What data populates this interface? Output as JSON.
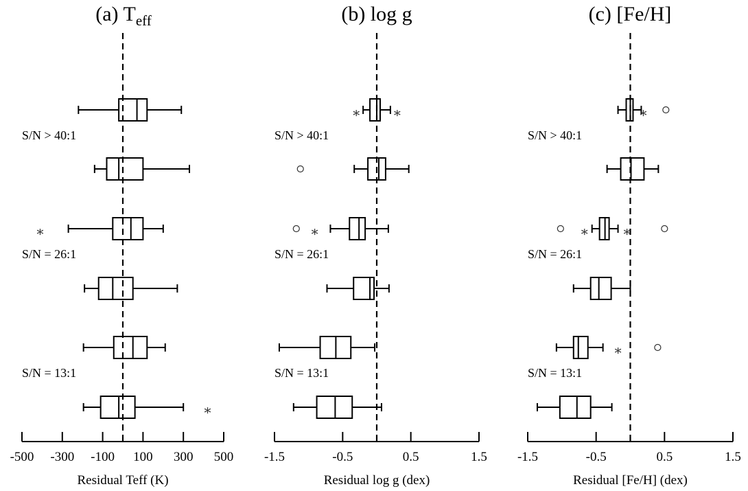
{
  "chart_data": [
    {
      "type": "boxplot",
      "title_main": "(a) T",
      "title_sub": "eff",
      "xlabel": "Residual Teff (K)",
      "xlim": [
        -500,
        500
      ],
      "xticks": [
        -500,
        -300,
        -100,
        100,
        300,
        500
      ],
      "reference_line": 0,
      "group_labels": [
        "S/N > 40:1",
        "S/N = 26:1",
        "S/N = 13:1"
      ],
      "boxes": [
        {
          "group": "S/N > 40:1",
          "whisker_low": -220,
          "q1": -20,
          "median": 70,
          "q3": 120,
          "whisker_high": 290,
          "outliers": [],
          "extremes": []
        },
        {
          "group": "S/N > 40:1",
          "whisker_low": -140,
          "q1": -80,
          "median": -20,
          "q3": 100,
          "whisker_high": 330,
          "outliers": [],
          "extremes": []
        },
        {
          "group": "S/N = 26:1",
          "whisker_low": -270,
          "q1": -50,
          "median": 40,
          "q3": 100,
          "whisker_high": 200,
          "outliers": [],
          "extremes": [
            -410
          ]
        },
        {
          "group": "S/N = 26:1",
          "whisker_low": -190,
          "q1": -120,
          "median": -50,
          "q3": 50,
          "whisker_high": 270,
          "outliers": [],
          "extremes": []
        },
        {
          "group": "S/N = 13:1",
          "whisker_low": -195,
          "q1": -45,
          "median": 50,
          "q3": 120,
          "whisker_high": 210,
          "outliers": [],
          "extremes": []
        },
        {
          "group": "S/N = 13:1",
          "whisker_low": -195,
          "q1": -110,
          "median": -20,
          "q3": 60,
          "whisker_high": 300,
          "outliers": [],
          "extremes": [
            420
          ]
        }
      ]
    },
    {
      "type": "boxplot",
      "title_main": "(b) log g",
      "title_sub": "",
      "xlabel": "Residual log g (dex)",
      "xlim": [
        -1.5,
        1.5
      ],
      "xticks": [
        "-1.5",
        "-0.5",
        "0.5",
        "1.5"
      ],
      "reference_line": 0,
      "group_labels": [
        "S/N > 40:1",
        "S/N = 26:1",
        "S/N = 13:1"
      ],
      "boxes": [
        {
          "group": "S/N > 40:1",
          "whisker_low": -0.2,
          "q1": -0.1,
          "median": 0.0,
          "q3": 0.05,
          "whisker_high": 0.2,
          "outliers": [],
          "extremes": [
            -0.3,
            0.3
          ]
        },
        {
          "group": "S/N > 40:1",
          "whisker_low": -0.33,
          "q1": -0.13,
          "median": 0.03,
          "q3": 0.13,
          "whisker_high": 0.47,
          "outliers": [
            -1.12
          ],
          "extremes": []
        },
        {
          "group": "S/N = 26:1",
          "whisker_low": -0.68,
          "q1": -0.4,
          "median": -0.26,
          "q3": -0.17,
          "whisker_high": 0.17,
          "outliers": [
            -1.18
          ],
          "extremes": [
            -0.91
          ]
        },
        {
          "group": "S/N = 26:1",
          "whisker_low": -0.73,
          "q1": -0.34,
          "median": -0.1,
          "q3": -0.04,
          "whisker_high": 0.18,
          "outliers": [],
          "extremes": []
        },
        {
          "group": "S/N = 13:1",
          "whisker_low": -1.43,
          "q1": -0.83,
          "median": -0.6,
          "q3": -0.38,
          "whisker_high": -0.03,
          "outliers": [],
          "extremes": []
        },
        {
          "group": "S/N = 13:1",
          "whisker_low": -1.22,
          "q1": -0.88,
          "median": -0.61,
          "q3": -0.36,
          "whisker_high": 0.07,
          "outliers": [],
          "extremes": []
        }
      ]
    },
    {
      "type": "boxplot",
      "title_main": "(c) [Fe/H]",
      "title_sub": "",
      "xlabel": "Residual [Fe/H] (dex)",
      "xlim": [
        -1.5,
        1.5
      ],
      "xticks": [
        "-1.5",
        "-0.5",
        "0.5",
        "1.5"
      ],
      "reference_line": 0,
      "group_labels": [
        "S/N > 40:1",
        "S/N = 26:1",
        "S/N = 13:1"
      ],
      "boxes": [
        {
          "group": "S/N > 40:1",
          "whisker_low": -0.18,
          "q1": -0.06,
          "median": 0.0,
          "q3": 0.04,
          "whisker_high": 0.16,
          "outliers": [
            0.52
          ],
          "extremes": [
            0.19
          ]
        },
        {
          "group": "S/N > 40:1",
          "whisker_low": -0.34,
          "q1": -0.14,
          "median": 0.01,
          "q3": 0.2,
          "whisker_high": 0.41,
          "outliers": [],
          "extremes": []
        },
        {
          "group": "S/N = 26:1",
          "whisker_low": -0.56,
          "q1": -0.45,
          "median": -0.37,
          "q3": -0.31,
          "whisker_high": -0.18,
          "outliers": [
            -1.02,
            0.5
          ],
          "extremes": [
            -0.67,
            -0.05
          ]
        },
        {
          "group": "S/N = 26:1",
          "whisker_low": -0.83,
          "q1": -0.58,
          "median": -0.46,
          "q3": -0.28,
          "whisker_high": 0.0,
          "outliers": [],
          "extremes": []
        },
        {
          "group": "S/N = 13:1",
          "whisker_low": -1.08,
          "q1": -0.83,
          "median": -0.76,
          "q3": -0.62,
          "whisker_high": -0.4,
          "outliers": [
            0.4
          ],
          "extremes": [
            -0.18
          ]
        },
        {
          "group": "S/N = 13:1",
          "whisker_low": -1.36,
          "q1": -1.03,
          "median": -0.78,
          "q3": -0.58,
          "whisker_high": -0.27,
          "outliers": [],
          "extremes": []
        }
      ]
    }
  ]
}
